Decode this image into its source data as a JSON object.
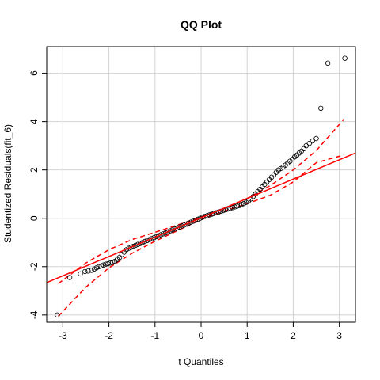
{
  "chart_data": {
    "type": "scatter",
    "title": "QQ Plot",
    "xlabel": "t Quantiles",
    "ylabel": "Studentized Residuals(fit_6)",
    "xlim": [
      -3.35,
      3.35
    ],
    "ylim": [
      -4.3,
      7.1
    ],
    "xticks": [
      -3,
      -2,
      -1,
      0,
      1,
      2,
      3
    ],
    "yticks": [
      -4,
      -2,
      0,
      2,
      4,
      6
    ],
    "grid": true,
    "reference_line": {
      "slope": 0.8,
      "intercept": 0.02
    },
    "envelope": {
      "x": [
        -3.1,
        -2.5,
        -2.0,
        -1.5,
        -1.0,
        -0.5,
        0.0,
        0.5,
        1.0,
        1.5,
        2.0,
        2.5,
        3.1
      ],
      "upper": [
        -2.7,
        -1.85,
        -1.3,
        -0.88,
        -0.58,
        -0.27,
        0.05,
        0.4,
        0.82,
        1.35,
        2.0,
        2.8,
        4.1
      ],
      "lower": [
        -4.05,
        -2.85,
        -2.05,
        -1.45,
        -0.95,
        -0.5,
        -0.05,
        0.3,
        0.6,
        0.95,
        1.5,
        2.3,
        2.62
      ]
    },
    "points": {
      "x": [
        -3.12,
        -2.85,
        -2.62,
        -2.52,
        -2.45,
        -2.38,
        -2.32,
        -2.27,
        -2.22,
        -2.17,
        -2.12,
        -2.07,
        -2.02,
        -1.97,
        -1.92,
        -1.87,
        -1.82,
        -1.77,
        -1.72,
        -1.67,
        -1.62,
        -1.57,
        -1.52,
        -1.47,
        -1.42,
        -1.37,
        -1.32,
        -1.27,
        -1.22,
        -1.17,
        -1.12,
        -1.07,
        -1.02,
        -0.97,
        -0.92,
        -0.87,
        -0.82,
        -0.77,
        -0.72,
        -0.67,
        -0.62,
        -0.57,
        -0.52,
        -0.47,
        -0.42,
        -0.37,
        -0.32,
        -0.27,
        -0.22,
        -0.17,
        -0.12,
        -0.07,
        -0.02,
        0.03,
        0.08,
        0.13,
        0.18,
        0.23,
        0.28,
        0.33,
        0.38,
        0.43,
        0.48,
        0.53,
        0.58,
        0.63,
        0.68,
        0.73,
        0.78,
        0.83,
        0.88,
        0.93,
        0.98,
        1.03,
        1.08,
        1.13,
        1.18,
        1.23,
        1.28,
        1.33,
        1.38,
        1.43,
        1.48,
        1.53,
        1.58,
        1.63,
        1.68,
        1.73,
        1.78,
        1.83,
        1.88,
        1.93,
        1.98,
        2.03,
        2.08,
        2.13,
        2.18,
        2.23,
        2.28,
        2.35,
        2.42,
        2.5,
        2.6,
        2.75,
        3.12
      ],
      "y": [
        -4.0,
        -2.45,
        -2.3,
        -2.2,
        -2.18,
        -2.15,
        -2.1,
        -2.05,
        -2.0,
        -1.97,
        -1.93,
        -1.9,
        -1.88,
        -1.85,
        -1.82,
        -1.78,
        -1.7,
        -1.62,
        -1.5,
        -1.4,
        -1.3,
        -1.24,
        -1.2,
        -1.16,
        -1.12,
        -1.08,
        -1.04,
        -1.0,
        -0.96,
        -0.92,
        -0.88,
        -0.84,
        -0.8,
        -0.76,
        -0.72,
        -0.68,
        -0.64,
        -0.6,
        -0.56,
        -0.52,
        -0.48,
        -0.44,
        -0.4,
        -0.36,
        -0.32,
        -0.28,
        -0.24,
        -0.2,
        -0.16,
        -0.12,
        -0.08,
        -0.04,
        0.0,
        0.04,
        0.08,
        0.11,
        0.14,
        0.17,
        0.2,
        0.23,
        0.26,
        0.29,
        0.32,
        0.35,
        0.38,
        0.41,
        0.44,
        0.47,
        0.5,
        0.53,
        0.57,
        0.61,
        0.66,
        0.72,
        0.8,
        0.9,
        1.0,
        1.1,
        1.2,
        1.3,
        1.4,
        1.5,
        1.6,
        1.7,
        1.8,
        1.9,
        2.0,
        2.06,
        2.12,
        2.2,
        2.28,
        2.36,
        2.45,
        2.54,
        2.62,
        2.7,
        2.78,
        2.88,
        3.0,
        3.1,
        3.2,
        3.3,
        4.55,
        6.42,
        6.62
      ]
    }
  }
}
